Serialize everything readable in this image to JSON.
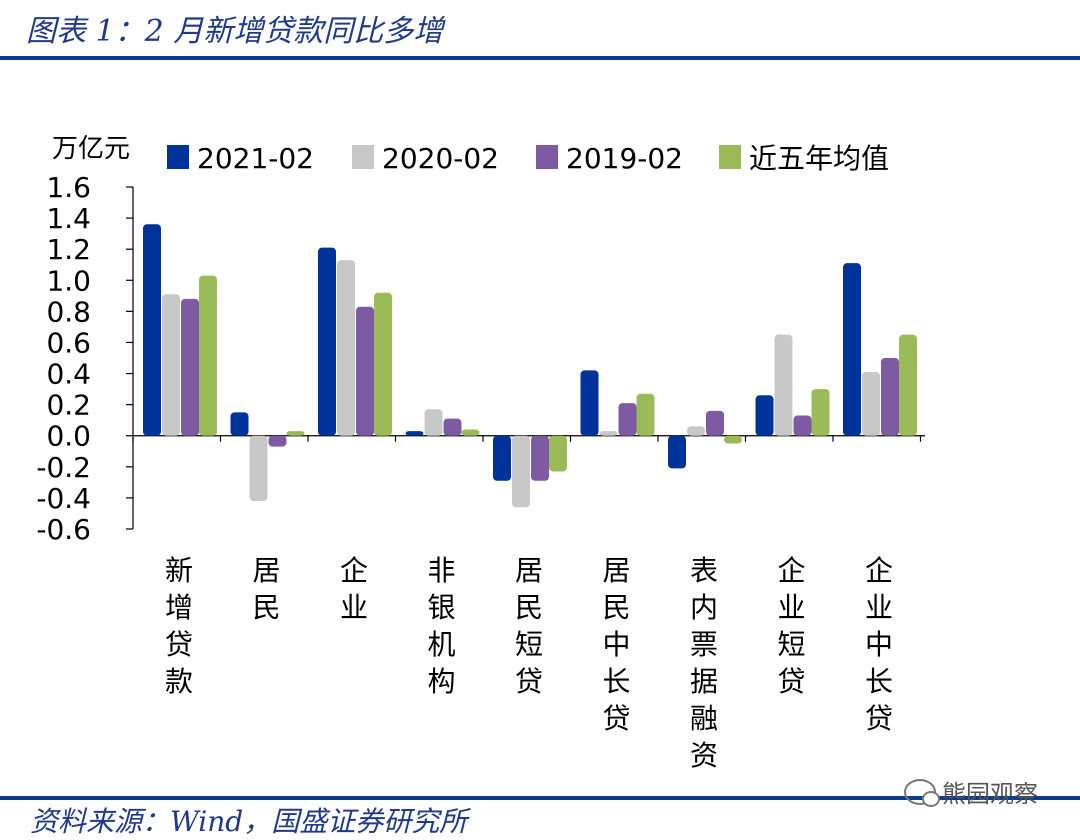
{
  "header": {
    "title": "图表 1：2 月新增贷款同比多增"
  },
  "footer": {
    "source": "资料来源：Wind，国盛证券研究所",
    "watermark": "熊园观察"
  },
  "chart_data": {
    "type": "bar",
    "title": "图表 1：2 月新增贷款同比多增",
    "ylabel": "万亿元",
    "xlabel": "",
    "ylim": [
      -0.6,
      1.6
    ],
    "yticks": [
      -0.6,
      -0.4,
      -0.2,
      0.0,
      0.2,
      0.4,
      0.6,
      0.8,
      1.0,
      1.2,
      1.4,
      1.6
    ],
    "ytick_labels": [
      "-0.6",
      "-0.4",
      "-0.2",
      "0.0",
      "0.2",
      "0.4",
      "0.6",
      "0.8",
      "1.0",
      "1.2",
      "1.4",
      "1.6"
    ],
    "categories": [
      "新增贷款",
      "居民",
      "企业",
      "非银机构",
      "居民短贷",
      "居民中长贷",
      "表内票据融资",
      "企业短贷",
      "企业中长贷"
    ],
    "series": [
      {
        "name": "2021-02",
        "color": "#003399",
        "values": [
          1.36,
          0.15,
          1.21,
          0.03,
          -0.29,
          0.42,
          -0.21,
          0.26,
          1.11
        ]
      },
      {
        "name": "2020-02",
        "color": "#c8c8c8",
        "values": [
          0.91,
          -0.42,
          1.13,
          0.17,
          -0.46,
          0.03,
          0.06,
          0.65,
          0.41
        ]
      },
      {
        "name": "2019-02",
        "color": "#7e5aa3",
        "values": [
          0.88,
          -0.07,
          0.83,
          0.11,
          -0.29,
          0.21,
          0.16,
          0.13,
          0.5
        ]
      },
      {
        "name": "近五年均值",
        "color": "#9bbb59",
        "values": [
          1.03,
          0.03,
          0.92,
          0.04,
          -0.23,
          0.27,
          -0.05,
          0.3,
          0.65
        ]
      }
    ],
    "legend_position": "top",
    "grid": false
  }
}
